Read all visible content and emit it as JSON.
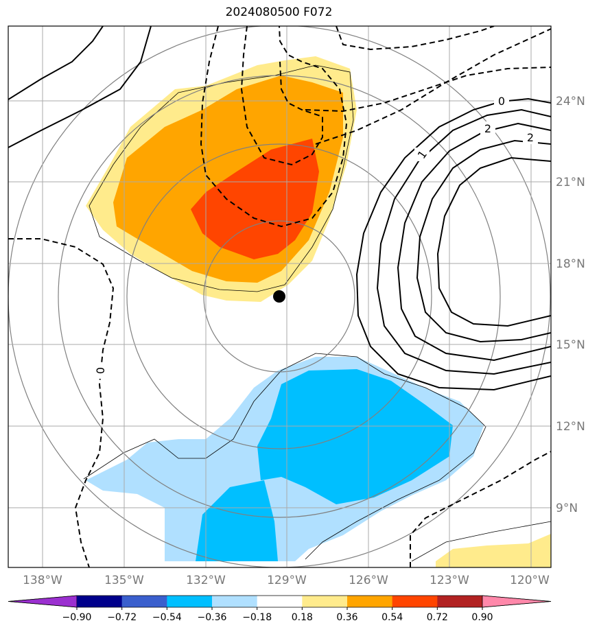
{
  "title": "2024080500 F072",
  "map": {
    "lon_ticks": [
      "138°W",
      "135°W",
      "132°W",
      "129°W",
      "126°W",
      "123°W",
      "120°W"
    ],
    "lat_ticks": [
      "24°N",
      "21°N",
      "18°N",
      "15°N",
      "12°N",
      "9°N"
    ],
    "grid": true,
    "storm_center": {
      "lon": -129.3,
      "lat": 16.8
    }
  },
  "contour_labels": [
    "0",
    "1",
    "2",
    "2",
    "0"
  ],
  "colorbar": {
    "labels": [
      "−0.90",
      "−0.72",
      "−0.54",
      "−0.36",
      "−0.18",
      "0.18",
      "0.36",
      "0.54",
      "0.72",
      "0.90"
    ],
    "colors": [
      "#9b30d0",
      "#00008b",
      "#3a5fcd",
      "#00bfff",
      "#b0e0ff",
      "#ffffff",
      "#ffeb8c",
      "#ffa500",
      "#ff4500",
      "#b22222",
      "#ff88aa"
    ]
  },
  "shading_colors": {
    "light_yellow": "#ffeb8c",
    "orange": "#ffa500",
    "red_orange": "#ff4500",
    "light_blue": "#b0e0ff",
    "blue": "#00bfff"
  }
}
